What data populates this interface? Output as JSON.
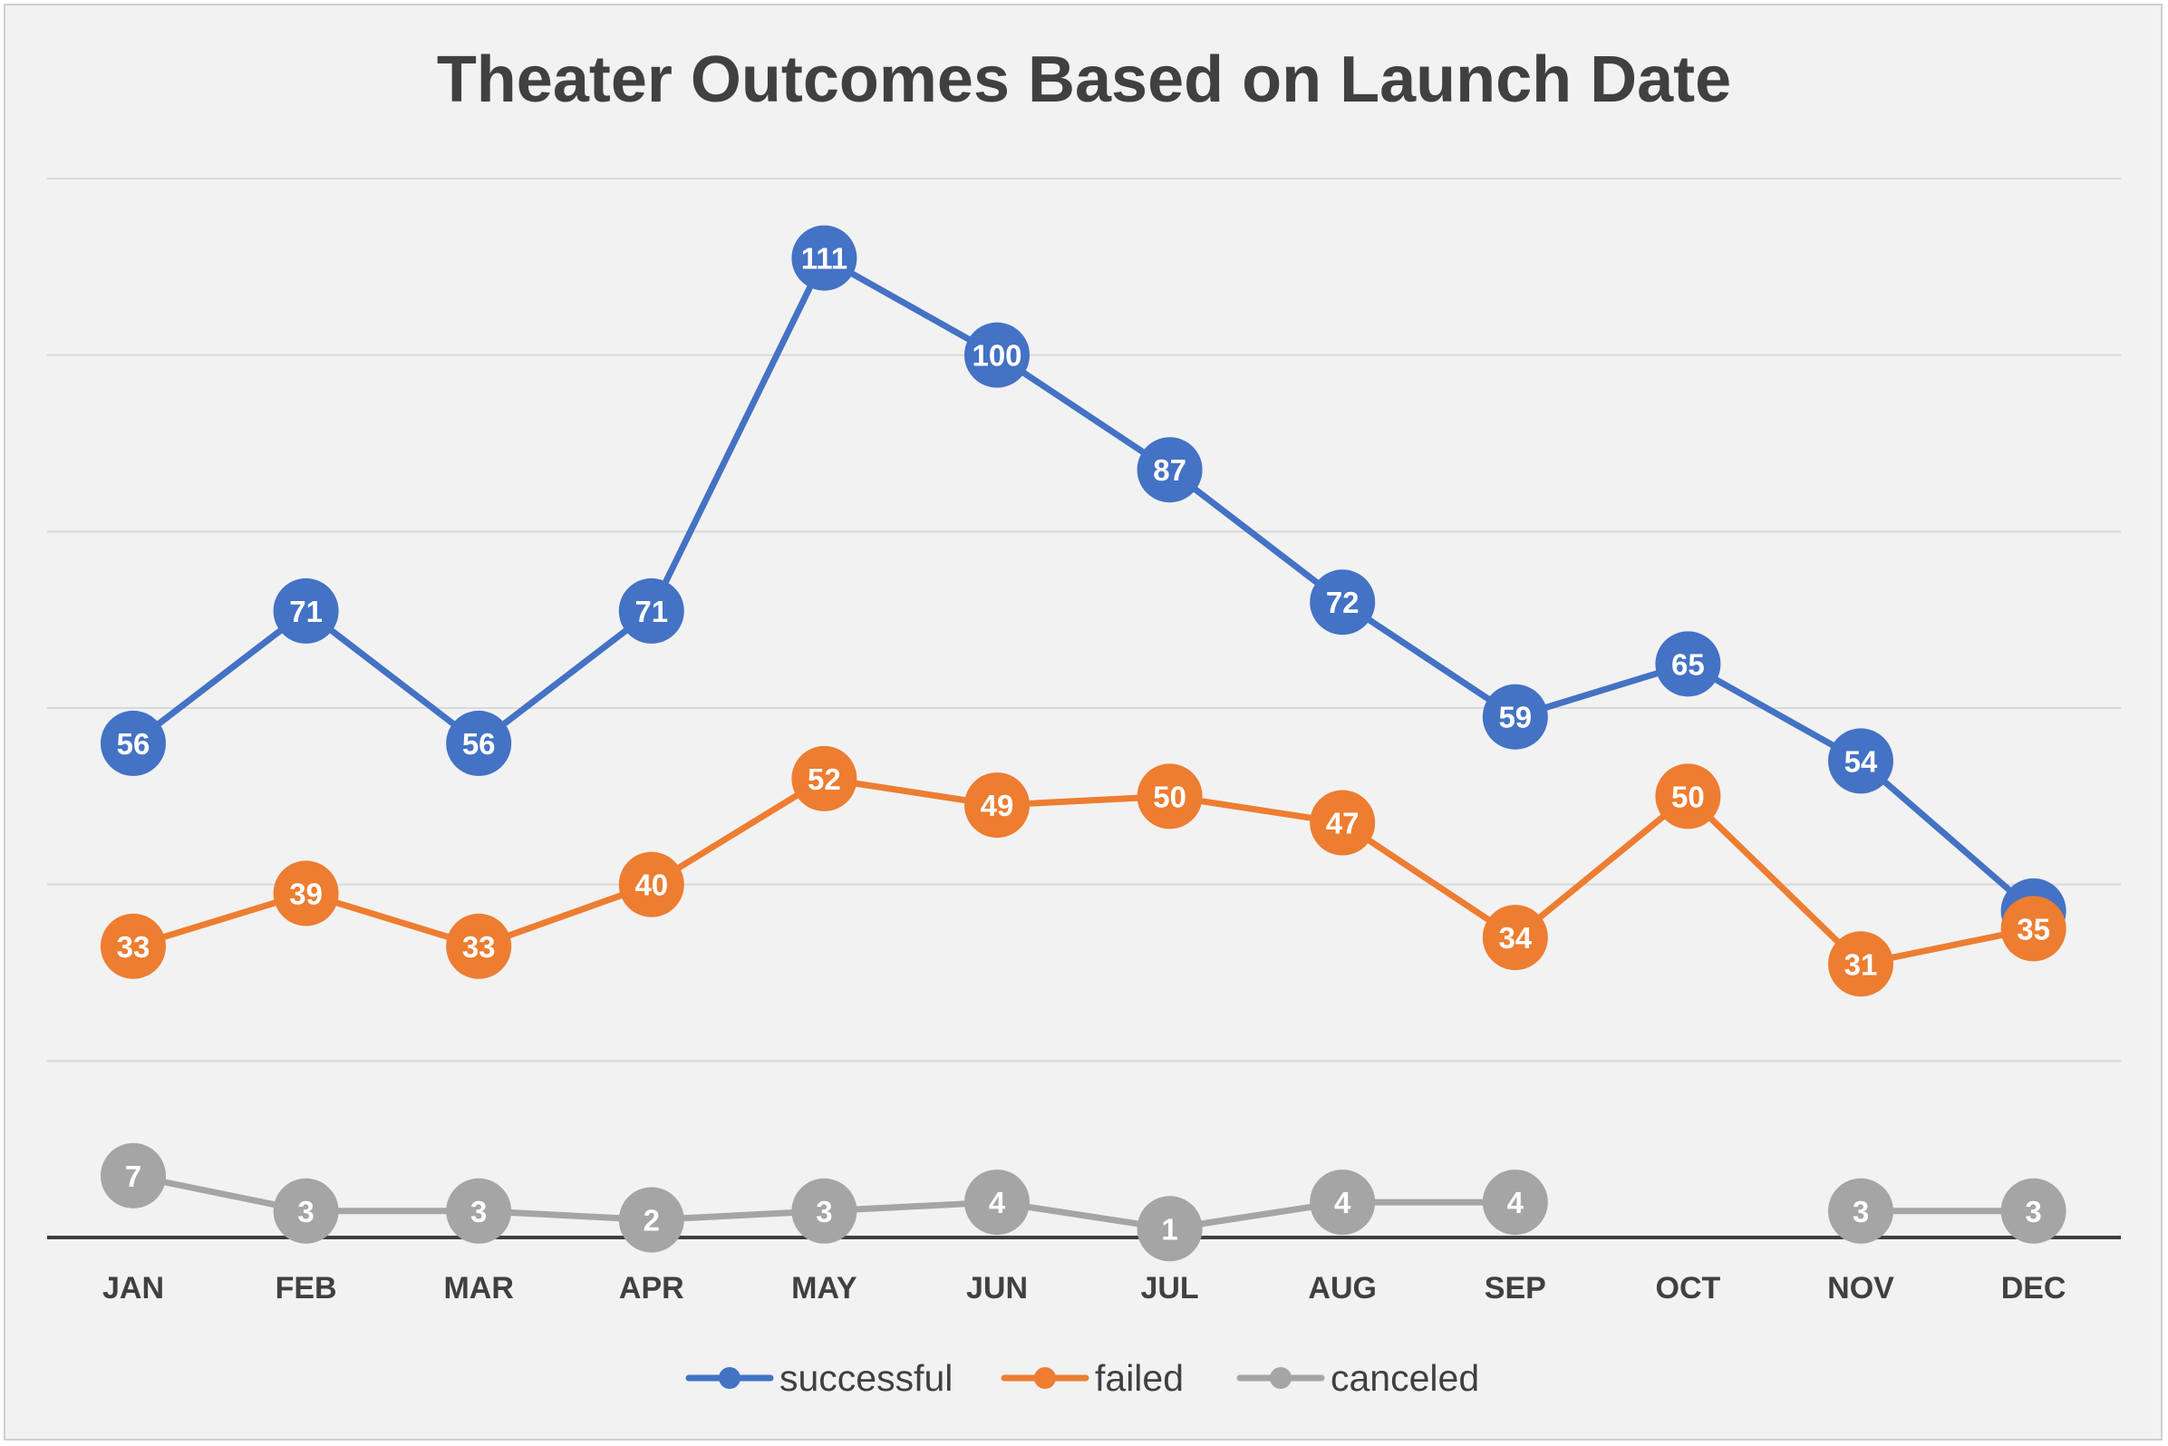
{
  "chart_data": {
    "type": "line",
    "title": "Theater Outcomes Based on Launch Date",
    "xlabel": "",
    "ylabel": "",
    "categories": [
      "JAN",
      "FEB",
      "MAR",
      "APR",
      "MAY",
      "JUN",
      "JUL",
      "AUG",
      "SEP",
      "OCT",
      "NOV",
      "DEC"
    ],
    "ylim": [
      0,
      120
    ],
    "grid": true,
    "legend": "bottom",
    "series": [
      {
        "name": "successful",
        "color": "#4472c4",
        "values": [
          56,
          71,
          56,
          71,
          111,
          100,
          87,
          72,
          59,
          65,
          54,
          37
        ]
      },
      {
        "name": "failed",
        "color": "#ed7d31",
        "values": [
          33,
          39,
          33,
          40,
          52,
          49,
          50,
          47,
          34,
          50,
          31,
          35
        ]
      },
      {
        "name": "canceled",
        "color": "#a5a5a5",
        "values": [
          7,
          3,
          3,
          2,
          3,
          4,
          1,
          4,
          4,
          null,
          3,
          3
        ]
      }
    ]
  }
}
